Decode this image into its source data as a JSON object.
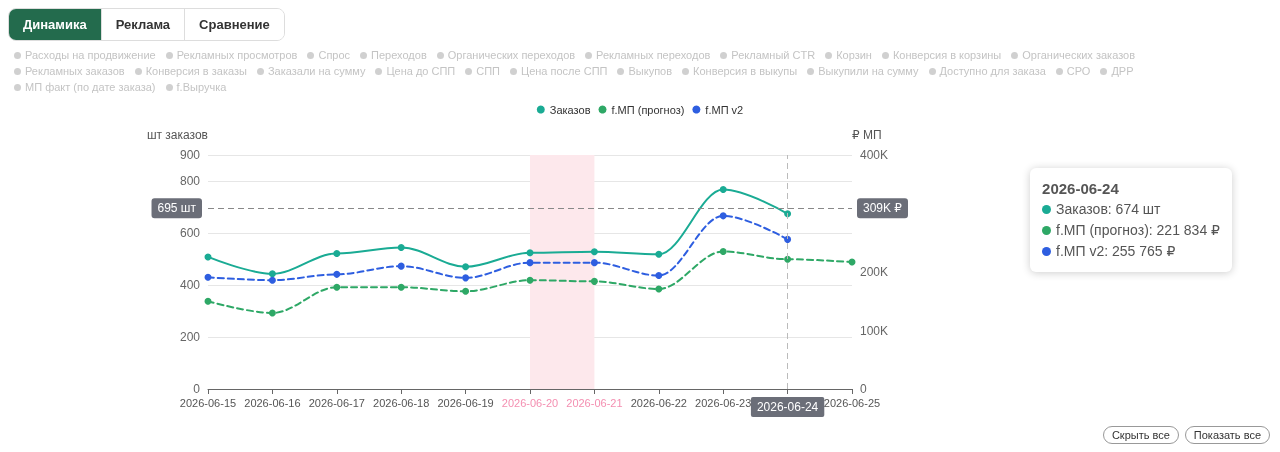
{
  "chart_data": {
    "type": "line",
    "ylabel": "шт заказов",
    "y2label": "₽ МП",
    "categories": [
      "2026-06-15",
      "2026-06-16",
      "2026-06-17",
      "2026-06-18",
      "2026-06-19",
      "2026-06-20",
      "2026-06-21",
      "2026-06-22",
      "2026-06-23",
      "2026-06-24",
      "2026-06-25"
    ],
    "series": [
      {
        "name": "Заказов",
        "color": "#1aab94",
        "line_style": "solid",
        "values": [
          508,
          443,
          521,
          544,
          470,
          524,
          528,
          518,
          767,
          674,
          null
        ]
      },
      {
        "name": "f.МП (прогноз)",
        "color": "#2ea866",
        "line_style": "dashed",
        "axis": "y2",
        "values": [
          150000,
          130000,
          174000,
          174000,
          167000,
          186000,
          184000,
          171000,
          235000,
          221834,
          217000
        ]
      },
      {
        "name": "f.МП v2",
        "color": "#2e5ee0",
        "line_style": "dashed",
        "axis": "y2",
        "values": [
          191000,
          186000,
          196000,
          210000,
          190000,
          216000,
          216000,
          194000,
          296000,
          255765,
          null
        ]
      }
    ],
    "ylim": [
      0,
      900
    ],
    "yticks": [
      0,
      200,
      400,
      600,
      800,
      900
    ],
    "y2lim": [
      0,
      400000
    ],
    "y2ticks": [
      {
        "value": 0,
        "label": "0"
      },
      {
        "value": 100000,
        "label": "100K"
      },
      {
        "value": 200000,
        "label": "200K"
      },
      {
        "value": 400000,
        "label": "400K"
      }
    ],
    "bands": [
      {
        "axis": "x",
        "from": "2026-06-20",
        "to": "2026-06-21",
        "color": "#fde8ec"
      }
    ],
    "ref_lines": [
      {
        "axis": "y",
        "value": 695,
        "label": "695 шт",
        "line_style": "dashed",
        "color": "#888888"
      },
      {
        "axis": "x",
        "value": "2026-06-24",
        "line_style": "dashed",
        "color": "#bbbbbb"
      }
    ],
    "grid": "y",
    "legend": "top",
    "marker": "circle",
    "annotations": [
      "Динамика",
      "Реклама",
      "Сравнение",
      "Скрыть все",
      "Показать все",
      "2026-06-24",
      "Заказов: 674 шт",
      "f.МП (прогноз): 221 834 ₽",
      "f.МП v2: 255 765 ₽",
      "309K ₽",
      "Расходы на продвижение",
      "Рекламных просмотров",
      "Спрос",
      "Переходов",
      "Органических переходов",
      "Рекламных переходов",
      "Рекламный CTR",
      "Корзин",
      "Конверсия в корзины",
      "Органических заказов",
      "Рекламных заказов",
      "Конверсия в заказы",
      "Заказали на сумму",
      "Цена до СПП",
      "СПП",
      "Цена после СПП",
      "Выкупов",
      "Конверсия в выкупы",
      "Выкупили на сумму",
      "Доступно для заказа",
      "СРО",
      "ДРР",
      "МП факт (по дате заказа)",
      "f.Выручка"
    ]
  }
}
